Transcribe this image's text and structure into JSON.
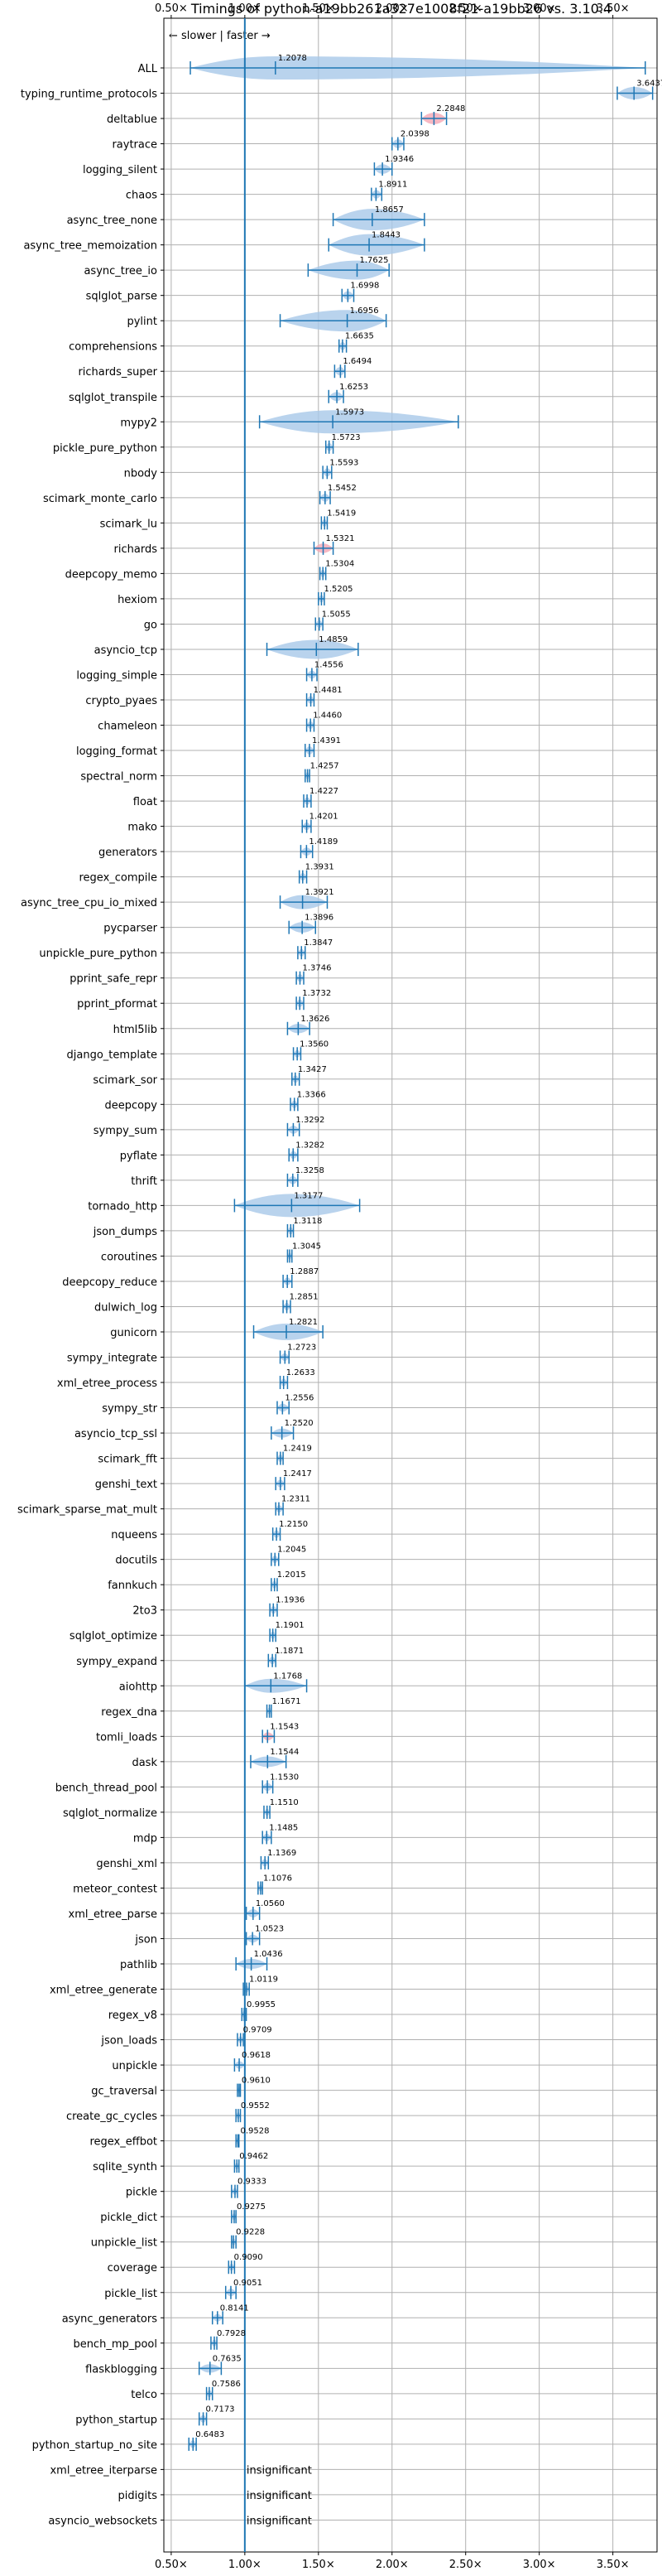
{
  "chart_data": {
    "type": "violin",
    "title": "Timings of python-a19bb261a327e1008f21-a19bb26 vs. 3.10.4",
    "annotation": "← slower | faster →",
    "xlim": [
      0.45,
      3.8
    ],
    "x_ticks": [
      0.5,
      1.0,
      1.5,
      2.0,
      2.5,
      3.0,
      3.5
    ],
    "x_tick_labels": [
      "0.50×",
      "1.00×",
      "1.50×",
      "2.00×",
      "2.50×",
      "3.00×",
      "3.50×"
    ],
    "reference_line": 1.0,
    "grid": true,
    "colors": {
      "body": "#a8c8e8",
      "line": "#1f77b4",
      "slower": "#f4a6b4"
    },
    "insignificant_label": "insignificant",
    "benchmarks": [
      {
        "name": "ALL",
        "label": "1.2078",
        "value": 1.2078,
        "lo": 0.63,
        "hi": 3.72,
        "spread": 0.45
      },
      {
        "name": "typing_runtime_protocols",
        "label": "3.6437",
        "value": 3.6437,
        "lo": 3.53,
        "hi": 3.77,
        "spread": 0.12
      },
      {
        "name": "deltablue",
        "label": "2.2848",
        "value": 2.2848,
        "lo": 2.2,
        "hi": 2.37,
        "spread": 0.1,
        "slower": true
      },
      {
        "name": "raytrace",
        "label": "2.0398",
        "value": 2.0398,
        "lo": 2.0,
        "hi": 2.08,
        "spread": 0.05
      },
      {
        "name": "logging_silent",
        "label": "1.9346",
        "value": 1.9346,
        "lo": 1.88,
        "hi": 2.0,
        "spread": 0.06
      },
      {
        "name": "chaos",
        "label": "1.8911",
        "value": 1.8911,
        "lo": 1.86,
        "hi": 1.93,
        "spread": 0.04
      },
      {
        "name": "async_tree_none",
        "label": "1.8657",
        "value": 1.8657,
        "lo": 1.6,
        "hi": 2.22,
        "spread": 0.3
      },
      {
        "name": "async_tree_memoization",
        "label": "1.8443",
        "value": 1.8443,
        "lo": 1.57,
        "hi": 2.22,
        "spread": 0.3
      },
      {
        "name": "async_tree_io",
        "label": "1.7625",
        "value": 1.7625,
        "lo": 1.43,
        "hi": 1.98,
        "spread": 0.25
      },
      {
        "name": "sqlglot_parse",
        "label": "1.6998",
        "value": 1.6998,
        "lo": 1.66,
        "hi": 1.74,
        "spread": 0.04
      },
      {
        "name": "pylint",
        "label": "1.6956",
        "value": 1.6956,
        "lo": 1.24,
        "hi": 1.96,
        "spread": 0.3
      },
      {
        "name": "comprehensions",
        "label": "1.6635",
        "value": 1.6635,
        "lo": 1.64,
        "hi": 1.69,
        "spread": 0.03
      },
      {
        "name": "richards_super",
        "label": "1.6494",
        "value": 1.6494,
        "lo": 1.61,
        "hi": 1.68,
        "spread": 0.04
      },
      {
        "name": "sqlglot_transpile",
        "label": "1.6253",
        "value": 1.6253,
        "lo": 1.57,
        "hi": 1.67,
        "spread": 0.05
      },
      {
        "name": "mypy2",
        "label": "1.5973",
        "value": 1.5973,
        "lo": 1.1,
        "hi": 2.45,
        "spread": 0.4
      },
      {
        "name": "pickle_pure_python",
        "label": "1.5723",
        "value": 1.5723,
        "lo": 1.55,
        "hi": 1.6,
        "spread": 0.03
      },
      {
        "name": "nbody",
        "label": "1.5593",
        "value": 1.5593,
        "lo": 1.53,
        "hi": 1.59,
        "spread": 0.03
      },
      {
        "name": "scimark_monte_carlo",
        "label": "1.5452",
        "value": 1.5452,
        "lo": 1.51,
        "hi": 1.58,
        "spread": 0.03
      },
      {
        "name": "scimark_lu",
        "label": "1.5419",
        "value": 1.5419,
        "lo": 1.52,
        "hi": 1.56,
        "spread": 0.02
      },
      {
        "name": "richards",
        "label": "1.5321",
        "value": 1.5321,
        "lo": 1.47,
        "hi": 1.6,
        "spread": 0.06,
        "slower": true
      },
      {
        "name": "deepcopy_memo",
        "label": "1.5304",
        "value": 1.5304,
        "lo": 1.51,
        "hi": 1.55,
        "spread": 0.02
      },
      {
        "name": "hexiom",
        "label": "1.5205",
        "value": 1.5205,
        "lo": 1.5,
        "hi": 1.54,
        "spread": 0.02
      },
      {
        "name": "go",
        "label": "1.5055",
        "value": 1.5055,
        "lo": 1.48,
        "hi": 1.53,
        "spread": 0.02
      },
      {
        "name": "asyncio_tcp",
        "label": "1.4859",
        "value": 1.4859,
        "lo": 1.15,
        "hi": 1.77,
        "spread": 0.25
      },
      {
        "name": "logging_simple",
        "label": "1.4556",
        "value": 1.4556,
        "lo": 1.42,
        "hi": 1.49,
        "spread": 0.03
      },
      {
        "name": "crypto_pyaes",
        "label": "1.4481",
        "value": 1.4481,
        "lo": 1.42,
        "hi": 1.47,
        "spread": 0.02
      },
      {
        "name": "chameleon",
        "label": "1.4460",
        "value": 1.446,
        "lo": 1.42,
        "hi": 1.47,
        "spread": 0.02
      },
      {
        "name": "logging_format",
        "label": "1.4391",
        "value": 1.4391,
        "lo": 1.41,
        "hi": 1.47,
        "spread": 0.03
      },
      {
        "name": "spectral_norm",
        "label": "1.4257",
        "value": 1.4257,
        "lo": 1.41,
        "hi": 1.44,
        "spread": 0.02
      },
      {
        "name": "float",
        "label": "1.4227",
        "value": 1.4227,
        "lo": 1.4,
        "hi": 1.45,
        "spread": 0.02
      },
      {
        "name": "mako",
        "label": "1.4201",
        "value": 1.4201,
        "lo": 1.39,
        "hi": 1.45,
        "spread": 0.02
      },
      {
        "name": "generators",
        "label": "1.4189",
        "value": 1.4189,
        "lo": 1.38,
        "hi": 1.46,
        "spread": 0.03
      },
      {
        "name": "regex_compile",
        "label": "1.3931",
        "value": 1.3931,
        "lo": 1.37,
        "hi": 1.42,
        "spread": 0.02
      },
      {
        "name": "async_tree_cpu_io_mixed",
        "label": "1.3921",
        "value": 1.3921,
        "lo": 1.24,
        "hi": 1.56,
        "spread": 0.15
      },
      {
        "name": "pycparser",
        "label": "1.3896",
        "value": 1.3896,
        "lo": 1.3,
        "hi": 1.48,
        "spread": 0.08
      },
      {
        "name": "unpickle_pure_python",
        "label": "1.3847",
        "value": 1.3847,
        "lo": 1.36,
        "hi": 1.41,
        "spread": 0.02
      },
      {
        "name": "pprint_safe_repr",
        "label": "1.3746",
        "value": 1.3746,
        "lo": 1.35,
        "hi": 1.4,
        "spread": 0.02
      },
      {
        "name": "pprint_pformat",
        "label": "1.3732",
        "value": 1.3732,
        "lo": 1.35,
        "hi": 1.4,
        "spread": 0.02
      },
      {
        "name": "html5lib",
        "label": "1.3626",
        "value": 1.3626,
        "lo": 1.29,
        "hi": 1.44,
        "spread": 0.06
      },
      {
        "name": "django_template",
        "label": "1.3560",
        "value": 1.356,
        "lo": 1.33,
        "hi": 1.38,
        "spread": 0.02
      },
      {
        "name": "scimark_sor",
        "label": "1.3427",
        "value": 1.3427,
        "lo": 1.32,
        "hi": 1.37,
        "spread": 0.02
      },
      {
        "name": "deepcopy",
        "label": "1.3366",
        "value": 1.3366,
        "lo": 1.31,
        "hi": 1.36,
        "spread": 0.02
      },
      {
        "name": "sympy_sum",
        "label": "1.3292",
        "value": 1.3292,
        "lo": 1.29,
        "hi": 1.37,
        "spread": 0.03
      },
      {
        "name": "pyflate",
        "label": "1.3282",
        "value": 1.3282,
        "lo": 1.3,
        "hi": 1.36,
        "spread": 0.02
      },
      {
        "name": "thrift",
        "label": "1.3258",
        "value": 1.3258,
        "lo": 1.29,
        "hi": 1.36,
        "spread": 0.03
      },
      {
        "name": "tornado_http",
        "label": "1.3177",
        "value": 1.3177,
        "lo": 0.93,
        "hi": 1.78,
        "spread": 0.35
      },
      {
        "name": "json_dumps",
        "label": "1.3118",
        "value": 1.3118,
        "lo": 1.29,
        "hi": 1.33,
        "spread": 0.02
      },
      {
        "name": "coroutines",
        "label": "1.3045",
        "value": 1.3045,
        "lo": 1.29,
        "hi": 1.32,
        "spread": 0.01
      },
      {
        "name": "deepcopy_reduce",
        "label": "1.2887",
        "value": 1.2887,
        "lo": 1.26,
        "hi": 1.32,
        "spread": 0.02
      },
      {
        "name": "dulwich_log",
        "label": "1.2851",
        "value": 1.2851,
        "lo": 1.26,
        "hi": 1.31,
        "spread": 0.02
      },
      {
        "name": "gunicorn",
        "label": "1.2821",
        "value": 1.2821,
        "lo": 1.06,
        "hi": 1.53,
        "spread": 0.2
      },
      {
        "name": "sympy_integrate",
        "label": "1.2723",
        "value": 1.2723,
        "lo": 1.24,
        "hi": 1.3,
        "spread": 0.02
      },
      {
        "name": "xml_etree_process",
        "label": "1.2633",
        "value": 1.2633,
        "lo": 1.24,
        "hi": 1.29,
        "spread": 0.02
      },
      {
        "name": "sympy_str",
        "label": "1.2556",
        "value": 1.2556,
        "lo": 1.22,
        "hi": 1.3,
        "spread": 0.03
      },
      {
        "name": "asyncio_tcp_ssl",
        "label": "1.2520",
        "value": 1.252,
        "lo": 1.18,
        "hi": 1.33,
        "spread": 0.05
      },
      {
        "name": "scimark_fft",
        "label": "1.2419",
        "value": 1.2419,
        "lo": 1.22,
        "hi": 1.26,
        "spread": 0.02
      },
      {
        "name": "genshi_text",
        "label": "1.2417",
        "value": 1.2417,
        "lo": 1.21,
        "hi": 1.27,
        "spread": 0.02
      },
      {
        "name": "scimark_sparse_mat_mult",
        "label": "1.2311",
        "value": 1.2311,
        "lo": 1.21,
        "hi": 1.26,
        "spread": 0.02
      },
      {
        "name": "nqueens",
        "label": "1.2150",
        "value": 1.215,
        "lo": 1.19,
        "hi": 1.24,
        "spread": 0.02
      },
      {
        "name": "docutils",
        "label": "1.2045",
        "value": 1.2045,
        "lo": 1.18,
        "hi": 1.23,
        "spread": 0.02
      },
      {
        "name": "fannkuch",
        "label": "1.2015",
        "value": 1.2015,
        "lo": 1.18,
        "hi": 1.22,
        "spread": 0.02
      },
      {
        "name": "2to3",
        "label": "1.1936",
        "value": 1.1936,
        "lo": 1.17,
        "hi": 1.22,
        "spread": 0.02
      },
      {
        "name": "sqlglot_optimize",
        "label": "1.1901",
        "value": 1.1901,
        "lo": 1.17,
        "hi": 1.21,
        "spread": 0.02
      },
      {
        "name": "sympy_expand",
        "label": "1.1871",
        "value": 1.1871,
        "lo": 1.16,
        "hi": 1.21,
        "spread": 0.02
      },
      {
        "name": "aiohttp",
        "label": "1.1768",
        "value": 1.1768,
        "lo": 1.0,
        "hi": 1.42,
        "spread": 0.15
      },
      {
        "name": "regex_dna",
        "label": "1.1671",
        "value": 1.1671,
        "lo": 1.15,
        "hi": 1.18,
        "spread": 0.01
      },
      {
        "name": "tomli_loads",
        "label": "1.1543",
        "value": 1.1543,
        "lo": 1.12,
        "hi": 1.2,
        "spread": 0.03,
        "slower": true
      },
      {
        "name": "dask",
        "label": "1.1544",
        "value": 1.1544,
        "lo": 1.04,
        "hi": 1.28,
        "spread": 0.08
      },
      {
        "name": "bench_thread_pool",
        "label": "1.1530",
        "value": 1.153,
        "lo": 1.12,
        "hi": 1.19,
        "spread": 0.03
      },
      {
        "name": "sqlglot_normalize",
        "label": "1.1510",
        "value": 1.151,
        "lo": 1.13,
        "hi": 1.17,
        "spread": 0.01
      },
      {
        "name": "mdp",
        "label": "1.1485",
        "value": 1.1485,
        "lo": 1.12,
        "hi": 1.18,
        "spread": 0.02
      },
      {
        "name": "genshi_xml",
        "label": "1.1369",
        "value": 1.1369,
        "lo": 1.11,
        "hi": 1.16,
        "spread": 0.02
      },
      {
        "name": "meteor_contest",
        "label": "1.1076",
        "value": 1.1076,
        "lo": 1.09,
        "hi": 1.12,
        "spread": 0.01
      },
      {
        "name": "xml_etree_parse",
        "label": "1.0560",
        "value": 1.056,
        "lo": 1.01,
        "hi": 1.1,
        "spread": 0.03
      },
      {
        "name": "json",
        "label": "1.0523",
        "value": 1.0523,
        "lo": 1.01,
        "hi": 1.1,
        "spread": 0.03
      },
      {
        "name": "pathlib",
        "label": "1.0436",
        "value": 1.0436,
        "lo": 0.94,
        "hi": 1.15,
        "spread": 0.07
      },
      {
        "name": "xml_etree_generate",
        "label": "1.0119",
        "value": 1.0119,
        "lo": 0.99,
        "hi": 1.03,
        "spread": 0.01
      },
      {
        "name": "regex_v8",
        "label": "0.9955",
        "value": 0.9955,
        "lo": 0.98,
        "hi": 1.01,
        "spread": 0.01
      },
      {
        "name": "json_loads",
        "label": "0.9709",
        "value": 0.9709,
        "lo": 0.95,
        "hi": 0.99,
        "spread": 0.01
      },
      {
        "name": "unpickle",
        "label": "0.9618",
        "value": 0.9618,
        "lo": 0.93,
        "hi": 1.0,
        "spread": 0.02
      },
      {
        "name": "gc_traversal",
        "label": "0.9610",
        "value": 0.961,
        "lo": 0.95,
        "hi": 0.97,
        "spread": 0.01
      },
      {
        "name": "create_gc_cycles",
        "label": "0.9552",
        "value": 0.9552,
        "lo": 0.94,
        "hi": 0.97,
        "spread": 0.01
      },
      {
        "name": "regex_effbot",
        "label": "0.9528",
        "value": 0.9528,
        "lo": 0.94,
        "hi": 0.96,
        "spread": 0.01
      },
      {
        "name": "sqlite_synth",
        "label": "0.9462",
        "value": 0.9462,
        "lo": 0.93,
        "hi": 0.96,
        "spread": 0.01
      },
      {
        "name": "pickle",
        "label": "0.9333",
        "value": 0.9333,
        "lo": 0.91,
        "hi": 0.95,
        "spread": 0.01
      },
      {
        "name": "pickle_dict",
        "label": "0.9275",
        "value": 0.9275,
        "lo": 0.91,
        "hi": 0.94,
        "spread": 0.01
      },
      {
        "name": "unpickle_list",
        "label": "0.9228",
        "value": 0.9228,
        "lo": 0.91,
        "hi": 0.94,
        "spread": 0.01
      },
      {
        "name": "coverage",
        "label": "0.9090",
        "value": 0.909,
        "lo": 0.89,
        "hi": 0.93,
        "spread": 0.01
      },
      {
        "name": "pickle_list",
        "label": "0.9051",
        "value": 0.9051,
        "lo": 0.87,
        "hi": 0.94,
        "spread": 0.02
      },
      {
        "name": "async_generators",
        "label": "0.8141",
        "value": 0.8141,
        "lo": 0.78,
        "hi": 0.85,
        "spread": 0.02
      },
      {
        "name": "bench_mp_pool",
        "label": "0.7928",
        "value": 0.7928,
        "lo": 0.77,
        "hi": 0.81,
        "spread": 0.01
      },
      {
        "name": "flaskblogging",
        "label": "0.7635",
        "value": 0.7635,
        "lo": 0.69,
        "hi": 0.84,
        "spread": 0.04
      },
      {
        "name": "telco",
        "label": "0.7586",
        "value": 0.7586,
        "lo": 0.74,
        "hi": 0.78,
        "spread": 0.01
      },
      {
        "name": "python_startup",
        "label": "0.7173",
        "value": 0.7173,
        "lo": 0.69,
        "hi": 0.74,
        "spread": 0.02
      },
      {
        "name": "python_startup_no_site",
        "label": "0.6483",
        "value": 0.6483,
        "lo": 0.62,
        "hi": 0.67,
        "spread": 0.02
      },
      {
        "name": "xml_etree_iterparse",
        "insignificant": true
      },
      {
        "name": "pidigits",
        "insignificant": true
      },
      {
        "name": "asyncio_websockets",
        "insignificant": true
      }
    ]
  }
}
